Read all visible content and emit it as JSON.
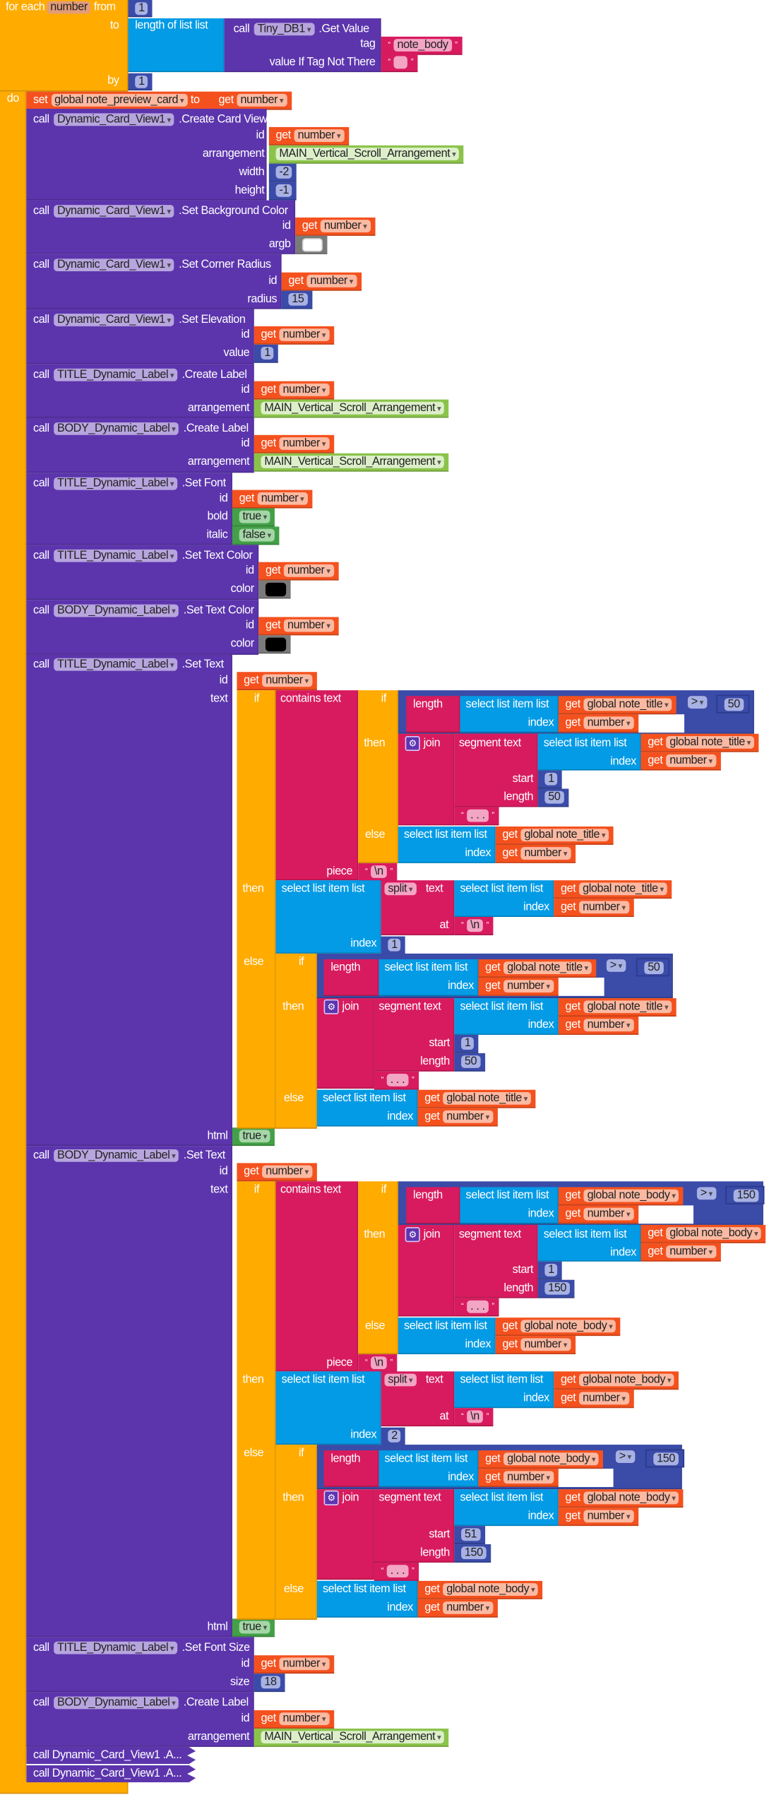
{
  "kw": {
    "for_each": "for each",
    "from": "from",
    "to": "to",
    "by": "by",
    "do": "do",
    "call": "call",
    "get": "get",
    "set": "set",
    "id": "id",
    "if": "if",
    "then": "then",
    "else": "else",
    "index": "index",
    "select": "select list item  list",
    "length": "length",
    "length_of_list": "length of list  list",
    "join": "join",
    "segment": "segment  text",
    "start": "start",
    "contains": "contains text",
    "piece": "piece",
    "split": "split",
    "text": "text",
    "at": "at",
    "html": "html",
    "q_open": "“",
    "q_close": "”",
    "gt": ">"
  },
  "vars": {
    "loop_var": "number",
    "number": "number",
    "preview": "global note_preview_card"
  },
  "loop": {
    "from": "1",
    "by": "1"
  },
  "components": {
    "db": "Tiny_DB1",
    "card": "Dynamic_Card_View1",
    "title": "TITLE_Dynamic_Label",
    "body": "BODY_Dynamic_Label"
  },
  "methods": {
    "get_value": ".Get Value",
    "create_card": ".Create Card View",
    "bg": ".Set Background Color",
    "radius": ".Set Corner Radius",
    "elev": ".Set Elevation",
    "create_label": ".Create Label",
    "font": ".Set Font",
    "text_color": ".Set Text Color",
    "font_size": ".Set Font Size"
  },
  "params": {
    "tag": "tag",
    "value_if": "value If Tag Not There",
    "arrangement": "arrangement",
    "width": "width",
    "height": "height",
    "argb": "argb",
    "radius": "radius",
    "value": "value",
    "bold": "bold",
    "italic": "italic",
    "color": "color",
    "size": "size"
  },
  "values": {
    "tag": "note_body",
    "value_if": "",
    "arrangement": "MAIN_Vertical_Scroll_Arrangement",
    "width": "-2",
    "height": "-1",
    "argb": "#FFFFFF",
    "radius": "15",
    "elevation": "1",
    "bold": "true",
    "italic": "false",
    "text_color": "#000000",
    "font_size": "18"
  },
  "set_text": [
    {
      "component": "TITLE_Dynamic_Label",
      "method": ".Set Text",
      "list": "global note_title",
      "max": "50",
      "then_start": "1",
      "then_len": "50",
      "ellipsis": ". . .",
      "newline": "\\n",
      "split_index": "1",
      "else_start": "1",
      "else_len": "50",
      "html": "true"
    },
    {
      "component": "BODY_Dynamic_Label",
      "method": ".Set Text",
      "list": "global note_body",
      "max": "150",
      "then_start": "1",
      "then_len": "150",
      "ellipsis": ". . .",
      "newline": "\\n",
      "split_index": "2",
      "else_start": "51",
      "else_len": "150",
      "html": "true"
    }
  ],
  "collapsed": [
    "call Dynamic_Card_View1 .A...",
    "call Dynamic_Card_View1 .A..."
  ],
  "colors": {
    "control": "#FFAB00",
    "component": "#5C35AD",
    "variable": "#F4511E",
    "text": "#D81B5E",
    "list": "#039BE5",
    "math": "#3A4BA8",
    "logic": "#43A047"
  }
}
